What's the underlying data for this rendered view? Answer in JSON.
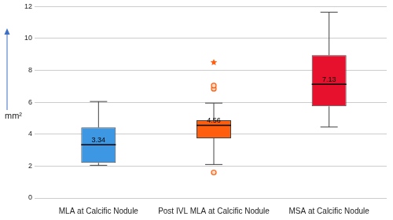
{
  "chart_data": {
    "type": "box",
    "y_label": "mm²",
    "categories": [
      "MLA at Calcific Nodule",
      "Post IVL MLA at Calcific Nodule",
      "MSA at Calcific Nodule"
    ],
    "colors": [
      "#3d97e3",
      "#fe5e0e",
      "#e8112d"
    ],
    "boxes": [
      {
        "min": 2.05,
        "q1": 2.2,
        "median": 3.34,
        "q3": 4.42,
        "max": 6.05,
        "outliers": [],
        "extremes": []
      },
      {
        "min": 2.1,
        "q1": 3.75,
        "median": 4.56,
        "q3": 4.88,
        "max": 5.95,
        "outliers": [
          1.6,
          6.85,
          7.05
        ],
        "extremes": [
          8.5
        ]
      },
      {
        "min": 4.45,
        "q1": 5.75,
        "median": 7.13,
        "q3": 8.95,
        "max": 11.65,
        "outliers": [],
        "extremes": []
      }
    ],
    "ylim": [
      0,
      12
    ],
    "yticks": [
      0,
      2,
      4,
      6,
      8,
      10,
      12
    ],
    "grid": true,
    "data_labels": true
  }
}
